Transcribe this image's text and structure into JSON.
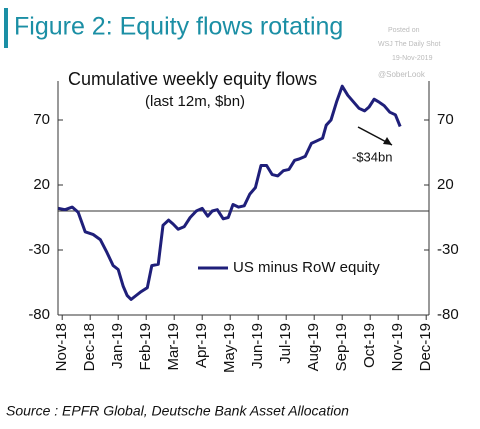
{
  "chart_data": {
    "type": "line",
    "title": "Figure 2: Equity flows rotating",
    "subtitle": "Cumulative weekly equity flows",
    "subtitle2": "(last 12m, $bn)",
    "watermark": [
      "Posted on",
      "WSJ The Daily Shot",
      "19-Nov-2019",
      "@SoberLook"
    ],
    "annotation": "-$34bn",
    "source": "Source : EPFR Global, Deutsche Bank Asset Allocation",
    "xlim": [
      -0.15,
      13.1
    ],
    "xticks": [
      {
        "value": 0,
        "label": "Nov-18"
      },
      {
        "value": 1,
        "label": "Dec-18"
      },
      {
        "value": 2,
        "label": "Jan-19"
      },
      {
        "value": 3,
        "label": "Feb-19"
      },
      {
        "value": 4,
        "label": "Mar-19"
      },
      {
        "value": 5,
        "label": "Apr-19"
      },
      {
        "value": 6,
        "label": "May-19"
      },
      {
        "value": 7,
        "label": "Jun-19"
      },
      {
        "value": 8,
        "label": "Jul-19"
      },
      {
        "value": 9,
        "label": "Aug-19"
      },
      {
        "value": 10,
        "label": "Sep-19"
      },
      {
        "value": 11,
        "label": "Oct-19"
      },
      {
        "value": 12,
        "label": "Nov-19"
      },
      {
        "value": 13,
        "label": "Dec-19"
      }
    ],
    "ylim": [
      -80,
      100
    ],
    "yticks": [
      -80,
      -30,
      20,
      70
    ],
    "y2lim": [
      -80,
      100
    ],
    "y2ticks": [
      -80,
      -30,
      20,
      70
    ],
    "x": [
      -0.14,
      0.1,
      0.36,
      0.57,
      0.82,
      1.1,
      1.36,
      1.6,
      1.82,
      2.0,
      2.18,
      2.32,
      2.46,
      2.64,
      2.82,
      3.04,
      3.2,
      3.43,
      3.6,
      3.8,
      3.96,
      4.14,
      4.36,
      4.57,
      4.79,
      5.0,
      5.2,
      5.36,
      5.54,
      5.75,
      5.93,
      6.1,
      6.3,
      6.5,
      6.7,
      6.9,
      7.1,
      7.3,
      7.5,
      7.7,
      7.9,
      8.1,
      8.3,
      8.46,
      8.68,
      8.9,
      9.1,
      9.3,
      9.43,
      9.6,
      9.8,
      10.0,
      10.2,
      10.4,
      10.6,
      10.8,
      10.96,
      11.14,
      11.3,
      11.5,
      11.7,
      11.9,
      12.07
    ],
    "series": [
      {
        "name": "US minus RoW equity",
        "color": "#1f1f7a",
        "values": [
          2,
          1,
          3,
          -1,
          -16,
          -18,
          -22,
          -32,
          -42,
          -45,
          -58,
          -65,
          -68,
          -65,
          -62,
          -59,
          -42,
          -41,
          -11,
          -7,
          -10,
          -14,
          -12,
          -5,
          0,
          2,
          -4,
          0,
          1,
          -6,
          -5,
          5,
          3,
          4,
          13,
          18,
          35,
          35,
          28,
          27,
          31,
          32,
          39,
          40,
          42,
          52,
          54,
          56,
          66,
          70,
          84,
          96,
          89,
          84,
          79,
          77,
          80,
          86,
          84,
          81,
          76,
          74,
          65
        ]
      }
    ],
    "zero_line": true
  }
}
